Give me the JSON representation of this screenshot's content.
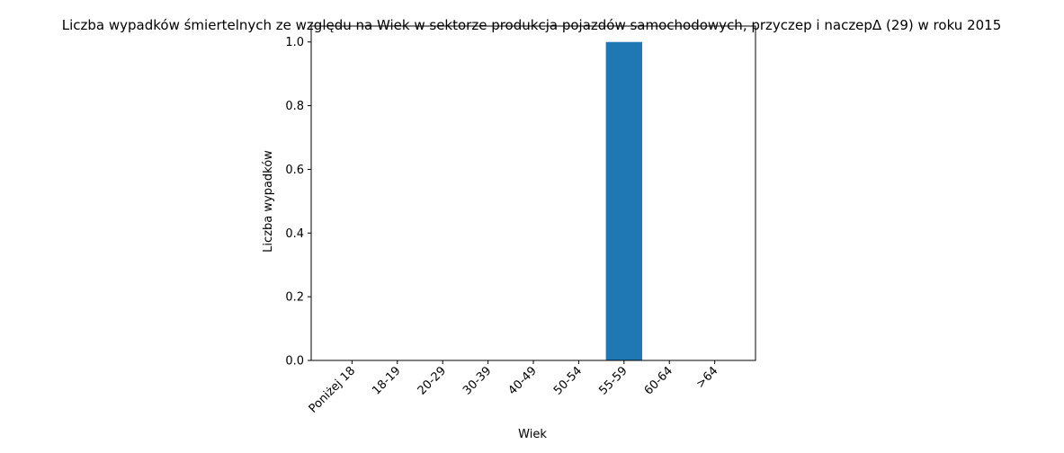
{
  "chart_data": {
    "type": "bar",
    "title": "Liczba wypadków śmiertelnych ze względu na Wiek w sektorze produkcja pojazdów samochodowych, przyczep i naczepΔ (29) w roku 2015",
    "xlabel": "Wiek",
    "ylabel": "Liczba wypadków",
    "categories": [
      "Poniżej 18",
      "18-19",
      "20-29",
      "30-39",
      "40-49",
      "50-54",
      "55-59",
      "60-64",
      ">64"
    ],
    "values": [
      0,
      0,
      0,
      0,
      0,
      0,
      1,
      0,
      0
    ],
    "ylim": [
      0,
      1.05
    ],
    "yticks": [
      0.0,
      0.2,
      0.4,
      0.6,
      0.8,
      1.0
    ],
    "ytick_labels": [
      "0.0",
      "0.2",
      "0.4",
      "0.6",
      "0.8",
      "1.0"
    ],
    "grid": false,
    "legend": "none",
    "bar_color": "#1f77b4"
  }
}
